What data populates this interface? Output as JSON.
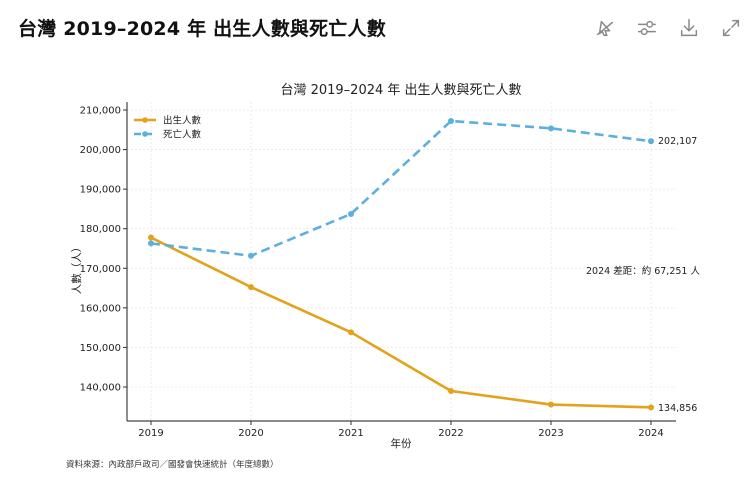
{
  "header": {
    "title": "台灣 2019–2024 年 出生人數與死亡人數"
  },
  "toolbar": {
    "buttons": [
      {
        "name": "disable-interactive-button",
        "icon": "cursor-off-icon"
      },
      {
        "name": "chart-options-button",
        "icon": "sliders-icon"
      },
      {
        "name": "download-button",
        "icon": "download-icon"
      },
      {
        "name": "expand-button",
        "icon": "expand-icon"
      }
    ]
  },
  "chart_data": {
    "type": "line",
    "title": "台灣 2019–2024 年 出生人數與死亡人數",
    "xlabel": "年份",
    "ylabel": "人數（人）",
    "x": [
      "2019",
      "2020",
      "2021",
      "2022",
      "2023",
      "2024"
    ],
    "ylim": [
      131400,
      211000
    ],
    "yticks": [
      140000,
      150000,
      160000,
      170000,
      180000,
      190000,
      200000,
      210000
    ],
    "ytick_labels": [
      "140,000",
      "150,000",
      "160,000",
      "170,000",
      "180,000",
      "190,000",
      "200,000",
      "210,000"
    ],
    "grid": true,
    "legend_position": "top-left",
    "series": [
      {
        "name": "出生人數",
        "color": "#E3A21A",
        "style": "solid",
        "values": [
          177767,
          165249,
          153820,
          138986,
          135571,
          134856
        ]
      },
      {
        "name": "死亡人數",
        "color": "#5BB0DE",
        "style": "dashed",
        "values": [
          176296,
          173156,
          183732,
          207230,
          205368,
          202107
        ]
      }
    ],
    "annotations": {
      "last_birth_label": "134,856",
      "last_death_label": "202,107",
      "gap_note": "2024 差距：約 67,251 人"
    },
    "source_note": "資料來源：內政部戶政司／國發會快速統計（年度總數）"
  }
}
